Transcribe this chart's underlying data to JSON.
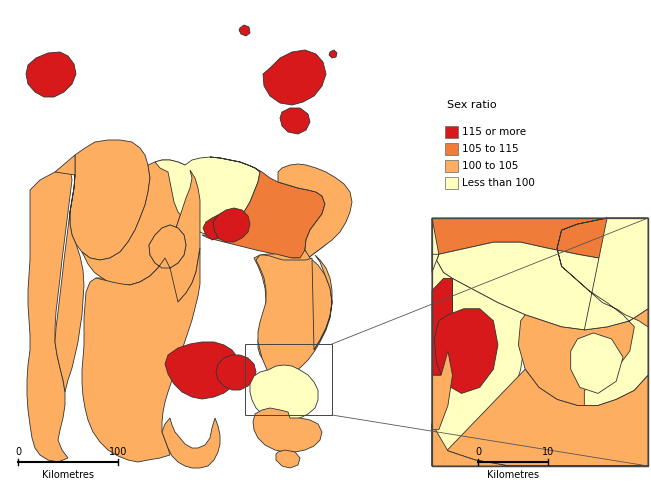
{
  "legend_title": "Sex ratio",
  "legend_labels": [
    "115 or more",
    "105 to 115",
    "100 to 105",
    "Less than 100"
  ],
  "legend_colors": [
    "#d7191c",
    "#f07c3a",
    "#fdae61",
    "#ffffbf"
  ],
  "background_color": "#ffffff",
  "ec": "#333333",
  "lw": 0.6,
  "figsize": [
    6.51,
    4.84
  ],
  "dpi": 100,
  "xlim": [
    0,
    651
  ],
  "ylim": [
    484,
    0
  ]
}
